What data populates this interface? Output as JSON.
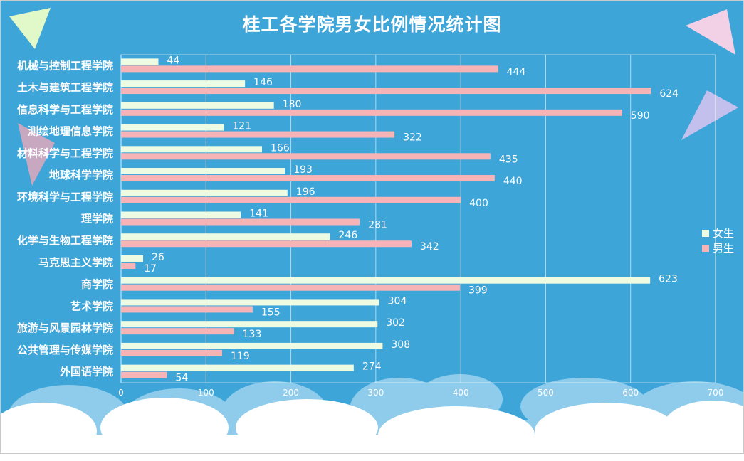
{
  "chart_data": {
    "type": "bar",
    "orientation": "horizontal",
    "title": "桂工各学院男女比例情况统计图",
    "categories": [
      "机械与控制工程学院",
      "土木与建筑工程学院",
      "信息科学与工程学院",
      "测绘地理信息学院",
      "材料科学与工程学院",
      "地球科学学院",
      "环境科学与工程学院",
      "理学院",
      "化学与生物工程学院",
      "马克思主义学院",
      "商学院",
      "艺术学院",
      "旅游与风景园林学院",
      "公共管理与传媒学院",
      "外国语学院"
    ],
    "series": [
      {
        "name": "女生",
        "color": "#eefbe3",
        "values": [
          44,
          146,
          180,
          121,
          166,
          193,
          196,
          141,
          246,
          26,
          623,
          304,
          302,
          308,
          274
        ]
      },
      {
        "name": "男生",
        "color": "#f7b4b6",
        "values": [
          444,
          624,
          590,
          322,
          435,
          440,
          400,
          281,
          342,
          17,
          399,
          155,
          133,
          119,
          54
        ]
      }
    ],
    "xlim": [
      0,
      700
    ],
    "xticks": [
      "0",
      "100",
      "200",
      "300",
      "400",
      "500",
      "600",
      "700"
    ],
    "grid": true,
    "legend_position": "right"
  },
  "colors": {
    "background": "#3ea5d8",
    "title": "#ffffff",
    "text": "#ffffff"
  }
}
